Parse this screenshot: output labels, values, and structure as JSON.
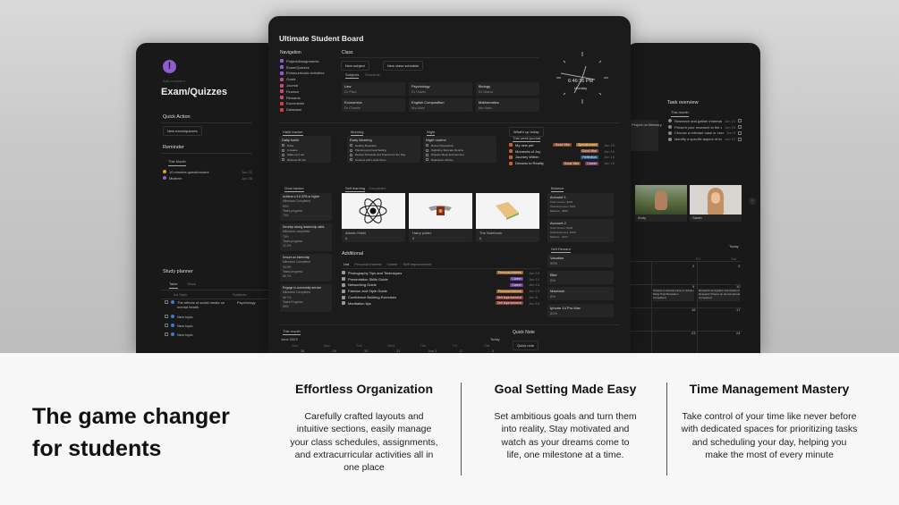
{
  "left_window": {
    "icon": "exclamation-icon",
    "add_comment": "Add comment",
    "title": "Exam/Quizzes",
    "quick_action": "Quick Action",
    "new_button": "New exam/quizzes",
    "reminder": "Reminder",
    "reminder_tab": "This Month",
    "reminders": [
      {
        "label": "10 minutes questionnaire",
        "date": "Jun 21",
        "color": "#e0a020"
      },
      {
        "label": "Midterm",
        "date": "Jun 28",
        "color": "#9b59d0"
      }
    ],
    "study_planner": "Study planner",
    "tabs": [
      "Table",
      "Show"
    ],
    "columns": [
      "Aa Topic",
      "Subjects"
    ],
    "rows": [
      {
        "topic": "The effects of social media on mental health",
        "subject": "Psychology"
      },
      {
        "topic": "New topic",
        "subject": ""
      },
      {
        "topic": "New topic",
        "subject": ""
      },
      {
        "topic": "New topic",
        "subject": ""
      }
    ]
  },
  "center_window": {
    "title": "Ultimate Student Board",
    "navigation": {
      "header": "Navigation",
      "items": [
        {
          "label": "Project/Assignments",
          "color": "#8e5cd0"
        },
        {
          "label": "Exam/Quizzes",
          "color": "#8e5cd0"
        },
        {
          "label": "Extracurricular Activities",
          "color": "#8e5cd0"
        },
        {
          "label": "Goals",
          "color": "#c94a7a"
        },
        {
          "label": "Journal",
          "color": "#c94a7a"
        },
        {
          "label": "Finance",
          "color": "#c94a7a"
        },
        {
          "label": "Rewards",
          "color": "#c94a7a"
        },
        {
          "label": "Documents",
          "color": "#d04040"
        },
        {
          "label": "Database",
          "color": "#d04040"
        }
      ]
    },
    "class": {
      "header": "Class",
      "buttons": [
        "New subject",
        "New class schedule"
      ],
      "tabs": [
        "Subjects",
        "Schedule"
      ],
      "subjects": [
        {
          "name": "Law",
          "teacher": "Dr Paul"
        },
        {
          "name": "Psychology",
          "teacher": "Dr Gavin"
        },
        {
          "name": "Biology",
          "teacher": "Dr Diana"
        },
        {
          "name": "Economics",
          "teacher": "Dr Charlie"
        },
        {
          "name": "English Composition",
          "teacher": "Ms Alice"
        },
        {
          "name": "Mathematics",
          "teacher": "Ms Kate"
        }
      ]
    },
    "clock": {
      "time": "6:46:16 PM",
      "day": "Monday"
    },
    "habit_tracker": {
      "header": "Habit tracker",
      "title": "Daily habit",
      "items": [
        "8 litre",
        "In bearer",
        "Wake up 6 am",
        "Workout 30 min"
      ]
    },
    "morning": {
      "header": "Morning",
      "title": "Early Morning",
      "items": [
        "Healthy Breakfast",
        "Planning and Goal Setting",
        "Review Schedule and Prepare for the Day",
        "Connect with Loved Ones"
      ]
    },
    "night": {
      "header": "Night",
      "title": "Night routine",
      "items": [
        "Dinner Preparation",
        "Nighttime Skincare Routine",
        "Prepare Sleep Environment",
        "Relaxation Activity"
      ]
    },
    "whats_up": {
      "button": "What's up today",
      "tab": "This week journal",
      "entries": [
        {
          "title": "My new pet",
          "tags": [
            {
              "label": "Good Vibe",
              "color": "#8a4a30"
            },
            {
              "label": "Special event",
              "color": "#a0702a"
            }
          ],
          "date": "Jun 15"
        },
        {
          "title": "Moments of Joy",
          "tags": [
            {
              "label": "Good Vibe",
              "color": "#8a4a30"
            }
          ],
          "date": "Jun 15"
        },
        {
          "title": "Journey Within",
          "tags": [
            {
              "label": "Reflection",
              "color": "#2a5a8a"
            }
          ],
          "date": "Jun 15"
        },
        {
          "title": "Dreams to Reality",
          "tags": [
            {
              "label": "Good Vibe",
              "color": "#8a4a30"
            },
            {
              "label": "Career",
              "color": "#7a3a6a"
            }
          ],
          "date": "Jun 15"
        }
      ]
    },
    "goal_tracker": {
      "header": "Goal tracker",
      "goals": [
        {
          "title": "Achieve a 3.8 GPA or higher",
          "m_label": "Milestone Completed",
          "m": "50%",
          "t_label": "Tasks progress",
          "t": "70%"
        },
        {
          "title": "Develop strong leadership skills",
          "m_label": "Milestone completed",
          "m": "70%",
          "t_label": "Tasks progress",
          "t": "22.2%"
        },
        {
          "title": "Secure an internship",
          "m_label": "Milestone Completed",
          "m": "33.3%",
          "t_label": "Tasks progress",
          "t": "66.7%"
        },
        {
          "title": "Engage in community service",
          "m_label": "Milestone Completed",
          "m": "66.7%",
          "t_label": "Tasks Progress",
          "t": "50%"
        }
      ]
    },
    "reading": {
      "tabs": [
        "Self learning",
        "Completed"
      ],
      "books": [
        {
          "title": "Atomic Habit",
          "progress": "0"
        },
        {
          "title": "Harry potter",
          "progress": "0"
        },
        {
          "title": "The Notebook",
          "progress": "0"
        }
      ]
    },
    "additional": {
      "header": "Additional",
      "tabs": [
        "List",
        "Personal Interest",
        "Career",
        "Self Improvement"
      ],
      "items": [
        {
          "title": "Photography Tips and Techniques",
          "tag": "Personal interest",
          "color": "#a0622a",
          "date": "Jun 10"
        },
        {
          "title": "Presentation Skills Guide",
          "tag": "Career",
          "color": "#6a3fa0",
          "date": "Jun 12"
        },
        {
          "title": "Networking Guide",
          "tag": "Career",
          "color": "#6a3fa0",
          "date": "Jun 14"
        },
        {
          "title": "Fashion and Style Guide",
          "tag": "Personal interest",
          "color": "#a0622a",
          "date": "Jun 15"
        },
        {
          "title": "Confidence Building Exercises",
          "tag": "Self improvement",
          "color": "#8a3a30",
          "date": "Jun 8"
        },
        {
          "title": "Meditation tips",
          "tag": "Self improvement",
          "color": "#8a3a30",
          "date": "Jun 10"
        }
      ]
    },
    "balance": {
      "header": "Balance",
      "accounts": [
        {
          "name": "Account 1",
          "income": "Total income: $336",
          "expense": "Total Expenses: $301",
          "balance": "Balance : $835"
        },
        {
          "name": "Account 2",
          "income": "Total income: $336",
          "expense": "Total Expenses: $198",
          "balance": "Balance : $372"
        }
      ]
    },
    "self_reward": {
      "header": "Self Reward",
      "items": [
        {
          "name": "Vacation",
          "pct": "90%"
        },
        {
          "name": "Bike",
          "pct": "0%"
        },
        {
          "name": "Macbook",
          "pct": "0%"
        },
        {
          "name": "Iphone 14 Pro Max",
          "pct": "20%"
        }
      ]
    },
    "calendar": {
      "tab": "This month",
      "month": "June 2023",
      "today": "Today",
      "days": [
        "Sun",
        "Mon",
        "Tue",
        "Wed",
        "Thu",
        "Fri",
        "Sat"
      ],
      "first_dates": [
        "28",
        "29",
        "30",
        "31",
        "Jun 1",
        "2",
        "3"
      ]
    },
    "quick_note": {
      "header": "Quick Note",
      "button": "Quick note"
    }
  },
  "right_window": {
    "project_card": "Project on Memory",
    "task_overview": "Task overview",
    "tab": "This month",
    "tasks": [
      {
        "title": "Research and gather informatio...",
        "date": "Jun 10"
      },
      {
        "title": "Present your research to the cla...",
        "date": "Jun 15"
      },
      {
        "title": "Choose a relevant case or creat...",
        "date": "Jun 9"
      },
      {
        "title": "Identify a specific aspect of me...",
        "date": "Jun 12"
      }
    ],
    "people": [
      {
        "name": "Andy"
      },
      {
        "name": "Sarah"
      }
    ],
    "calendar": {
      "today": "Today",
      "fri": "Fri",
      "sat": "Sat",
      "dates": [
        "2",
        "3",
        "9",
        "10",
        "16",
        "17",
        "23",
        "24"
      ],
      "events": [
        "Choose a relevant case or create a fi...",
        "Mock Trial Simulation",
        "Completed",
        "Research and gather information fr...",
        "Research Project on Human Emotions",
        "Completed"
      ]
    }
  },
  "marketing": {
    "headline_1": "The game changer",
    "headline_2": "for students",
    "features": [
      {
        "title": "Effortless Organization",
        "body": "Carefully crafted layouts and intuitive sections, easily manage your class schedules, assignments, and extracurricular activities all in one place"
      },
      {
        "title": "Goal Setting Made Easy",
        "body": "Set ambitious goals and turn them into reality, Stay motivated and watch as your dreams come to life, one milestone at a time."
      },
      {
        "title": "Time Management Mastery",
        "body": "Take control of your time like never before with dedicated spaces for prioritizing tasks and scheduling your day, helping you make the most of every minute"
      }
    ]
  }
}
